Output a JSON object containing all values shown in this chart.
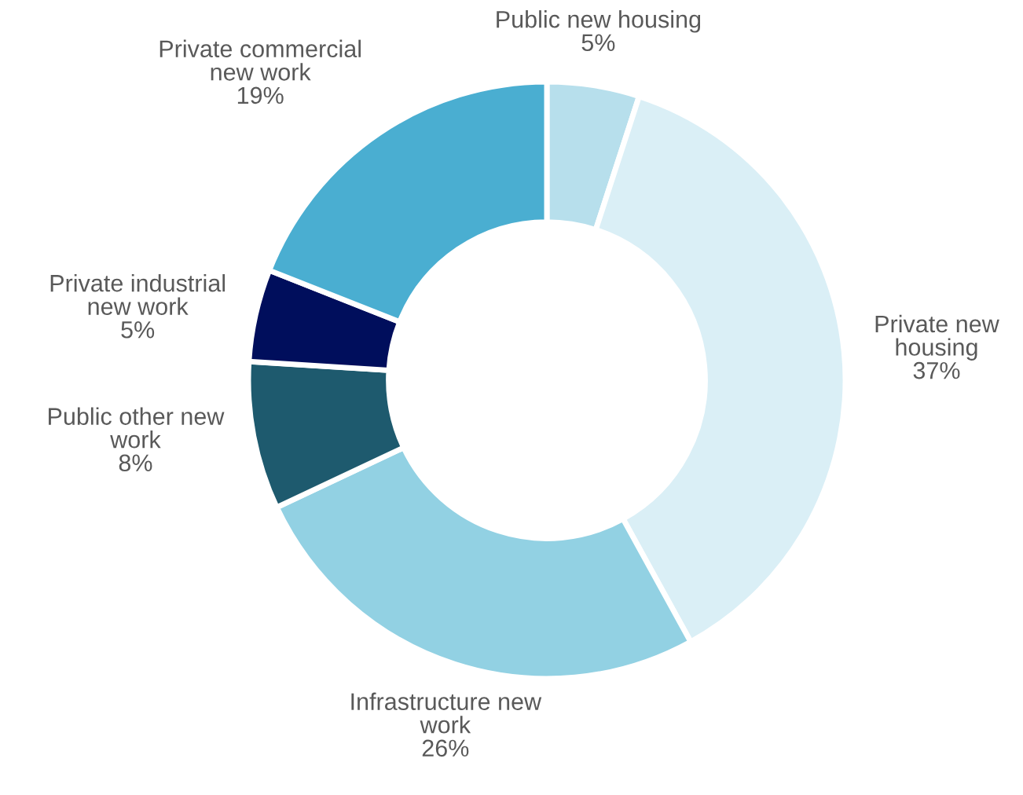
{
  "chart_data": {
    "type": "donut",
    "categories": [
      "Public new housing",
      "Private new\nhousing",
      "Infrastructure new\nwork",
      "Public other new\nwork",
      "Private industrial\nnew work",
      "Private commercial\nnew work"
    ],
    "values": [
      5,
      37,
      26,
      8,
      5,
      19
    ],
    "colors": [
      "#b7dfec",
      "#daeff6",
      "#92d1e3",
      "#1e5a6e",
      "#000e5c",
      "#4aaed1"
    ],
    "value_labels": [
      "5%",
      "37%",
      "26%",
      "8%",
      "5%",
      "19%"
    ]
  }
}
